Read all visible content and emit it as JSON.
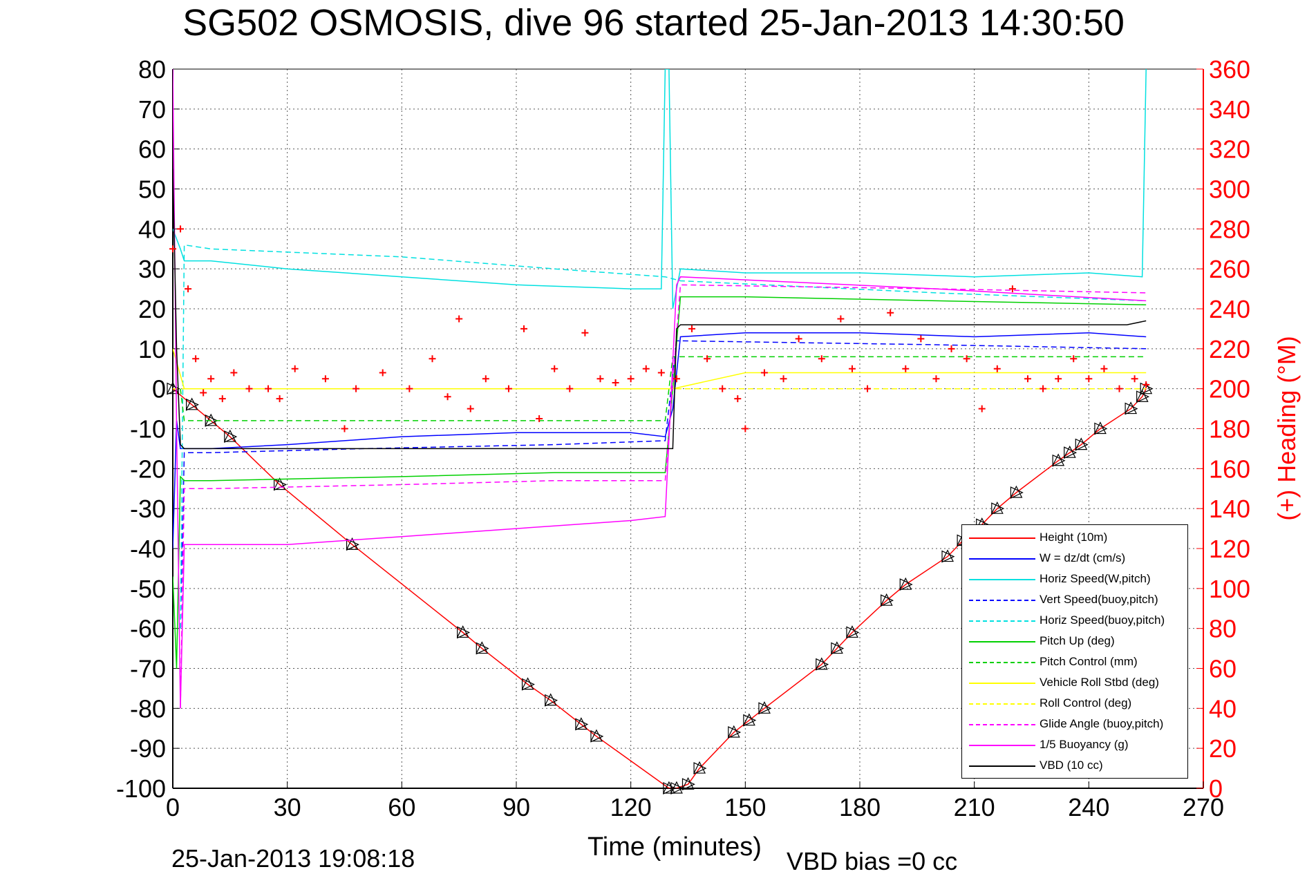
{
  "chart_data": {
    "type": "line",
    "title": "SG502 OSMOSIS, dive 96 started 25-Jan-2013 14:30:50",
    "xlabel": "Time (minutes)",
    "ylabel": "",
    "ylabel_right": "(+) Heading (°M)",
    "xlim": [
      0,
      270
    ],
    "ylim": [
      -100,
      80
    ],
    "ylim_right": [
      0,
      360
    ],
    "x_ticks": [
      "0",
      "30",
      "60",
      "90",
      "120",
      "150",
      "180",
      "210",
      "240",
      "270"
    ],
    "y_ticks": [
      "80",
      "70",
      "60",
      "50",
      "40",
      "30",
      "20",
      "10",
      "0",
      "-10",
      "-20",
      "-30",
      "-40",
      "-50",
      "-60",
      "-70",
      "-80",
      "-90",
      "-100"
    ],
    "y_right_ticks": [
      "360",
      "340",
      "320",
      "300",
      "280",
      "260",
      "240",
      "220",
      "200",
      "180",
      "160",
      "140",
      "120",
      "100",
      "80",
      "60",
      "40",
      "20",
      "0"
    ],
    "grid": true,
    "legend_position": "bottom-right",
    "footer_left": "25-Jan-2013 19:08:18",
    "footer_right": "VBD bias =0 cc",
    "series": [
      {
        "name": "Height (10m)",
        "color": "#ff0000",
        "style": "solid",
        "axis": "left",
        "markers": "triangle",
        "x": [
          0,
          5,
          10,
          15,
          28,
          47,
          76,
          81,
          93,
          99,
          107,
          111,
          130,
          132,
          135,
          138,
          147,
          151,
          155,
          170,
          174,
          178,
          187,
          192,
          203,
          207,
          212,
          216,
          221,
          232,
          235,
          238,
          243,
          251,
          254,
          255
        ],
        "y": [
          0,
          -4,
          -8,
          -12,
          -24,
          -39,
          -61,
          -65,
          -74,
          -78,
          -84,
          -87,
          -100,
          -100,
          -99,
          -95,
          -86,
          -83,
          -80,
          -69,
          -65,
          -61,
          -53,
          -49,
          -42,
          -38,
          -34,
          -30,
          -26,
          -18,
          -16,
          -14,
          -10,
          -5,
          -2,
          0
        ]
      },
      {
        "name": "W = dz/dt (cm/s)",
        "color": "#0000ff",
        "style": "solid",
        "axis": "left",
        "x": [
          0,
          1,
          2,
          3,
          10,
          30,
          60,
          90,
          120,
          129,
          131,
          133,
          150,
          180,
          210,
          240,
          255
        ],
        "y": [
          -40,
          -8,
          -15,
          -15,
          -15,
          -14,
          -12,
          -11,
          -11,
          -12,
          -5,
          13,
          14,
          14,
          13,
          14,
          13
        ]
      },
      {
        "name": "Horiz Speed(W,pitch)",
        "color": "#00e0e0",
        "style": "solid",
        "axis": "left",
        "x": [
          0,
          2,
          3,
          10,
          30,
          60,
          90,
          120,
          128,
          129,
          130,
          131,
          133,
          150,
          180,
          210,
          240,
          254,
          255
        ],
        "y": [
          40,
          35,
          32,
          32,
          30,
          28,
          26,
          25,
          25,
          80,
          80,
          20,
          30,
          29,
          29,
          28,
          29,
          28,
          80
        ]
      },
      {
        "name": "Vert Speed(buoy,pitch)",
        "color": "#0000ff",
        "style": "dashed",
        "axis": "left",
        "x": [
          2,
          3,
          10,
          50,
          100,
          129,
          132,
          200,
          255
        ],
        "y": [
          -60,
          -16,
          -16,
          -15,
          -14,
          -13,
          12,
          11,
          10
        ]
      },
      {
        "name": "Horiz Speed(buoy,pitch)",
        "color": "#00e0e0",
        "style": "dashed",
        "axis": "left",
        "x": [
          2,
          3,
          10,
          60,
          100,
          129,
          133,
          200,
          255
        ],
        "y": [
          -60,
          36,
          35,
          33,
          30,
          28,
          27,
          24,
          22
        ]
      },
      {
        "name": "Pitch Up (deg)",
        "color": "#00d000",
        "style": "solid",
        "axis": "left",
        "x": [
          0,
          1,
          2,
          3,
          10,
          60,
          100,
          129,
          131,
          133,
          150,
          200,
          255
        ],
        "y": [
          -47,
          -70,
          -22,
          -23,
          -23,
          -22,
          -21,
          -21,
          0,
          23,
          23,
          22,
          21
        ]
      },
      {
        "name": "Pitch Control (mm)",
        "color": "#00d000",
        "style": "dashed",
        "axis": "left",
        "x": [
          2,
          3,
          60,
          129,
          131,
          133,
          255
        ],
        "y": [
          0,
          -8,
          -8,
          -8,
          8,
          8,
          8
        ]
      },
      {
        "name": "Vehicle Roll Stbd (deg)",
        "color": "#ffff00",
        "style": "solid",
        "axis": "left",
        "x": [
          0,
          3,
          10,
          30,
          60,
          90,
          120,
          131,
          150,
          180,
          210,
          240,
          255
        ],
        "y": [
          10,
          0,
          0,
          0,
          0,
          0,
          0,
          0,
          4,
          4,
          4,
          4,
          4
        ]
      },
      {
        "name": "Roll Control (deg)",
        "color": "#ffff00",
        "style": "dashed",
        "axis": "left",
        "x": [
          0,
          3,
          10,
          30,
          60,
          90,
          120,
          131,
          150,
          180,
          210,
          240,
          255
        ],
        "y": [
          0,
          0,
          0,
          0,
          0,
          0,
          0,
          0,
          0,
          0,
          0,
          0,
          0
        ]
      },
      {
        "name": "Glide Angle (buoy,pitch)",
        "color": "#ff00ff",
        "style": "dashed",
        "axis": "left",
        "x": [
          2,
          3,
          10,
          60,
          100,
          129,
          133,
          200,
          255
        ],
        "y": [
          -80,
          -25,
          -25,
          -24,
          -23,
          -23,
          26,
          25,
          24
        ]
      },
      {
        "name": "1/5 Buoyancy (g)",
        "color": "#ff00ff",
        "style": "solid",
        "axis": "left",
        "x": [
          0,
          1,
          2,
          3,
          30,
          60,
          90,
          120,
          129,
          132,
          133,
          200,
          255
        ],
        "y": [
          80,
          -10,
          -80,
          -39,
          -39,
          -37,
          -35,
          -33,
          -32,
          26,
          28,
          25,
          22
        ]
      },
      {
        "name": "VBD (10 cc)",
        "color": "#000000",
        "style": "solid",
        "axis": "left",
        "x": [
          0,
          1,
          2,
          3,
          129,
          131,
          132,
          133,
          250,
          255
        ],
        "y": [
          55,
          10,
          -14,
          -15,
          -15,
          -15,
          15,
          16,
          16,
          17
        ]
      },
      {
        "name": "Heading",
        "color": "#ff0000",
        "style": "markers",
        "axis": "right",
        "x": [
          0,
          2,
          4,
          6,
          8,
          10,
          13,
          16,
          20,
          25,
          28,
          32,
          40,
          45,
          48,
          55,
          62,
          68,
          72,
          75,
          78,
          82,
          88,
          92,
          96,
          100,
          104,
          108,
          112,
          116,
          120,
          124,
          128,
          132,
          136,
          140,
          144,
          148,
          150,
          155,
          160,
          164,
          170,
          175,
          178,
          182,
          188,
          192,
          196,
          200,
          204,
          208,
          212,
          216,
          220,
          224,
          228,
          232,
          236,
          240,
          244,
          248,
          252,
          255
        ],
        "y": [
          270,
          280,
          250,
          215,
          198,
          205,
          195,
          208,
          200,
          200,
          195,
          210,
          205,
          180,
          200,
          208,
          200,
          215,
          196,
          235,
          190,
          205,
          200,
          230,
          185,
          210,
          200,
          228,
          205,
          203,
          205,
          210,
          208,
          205,
          230,
          215,
          200,
          195,
          180,
          208,
          205,
          225,
          215,
          235,
          210,
          200,
          238,
          210,
          225,
          205,
          220,
          215,
          190,
          210,
          250,
          205,
          200,
          205,
          215,
          205,
          210,
          200,
          205,
          202
        ]
      }
    ]
  }
}
